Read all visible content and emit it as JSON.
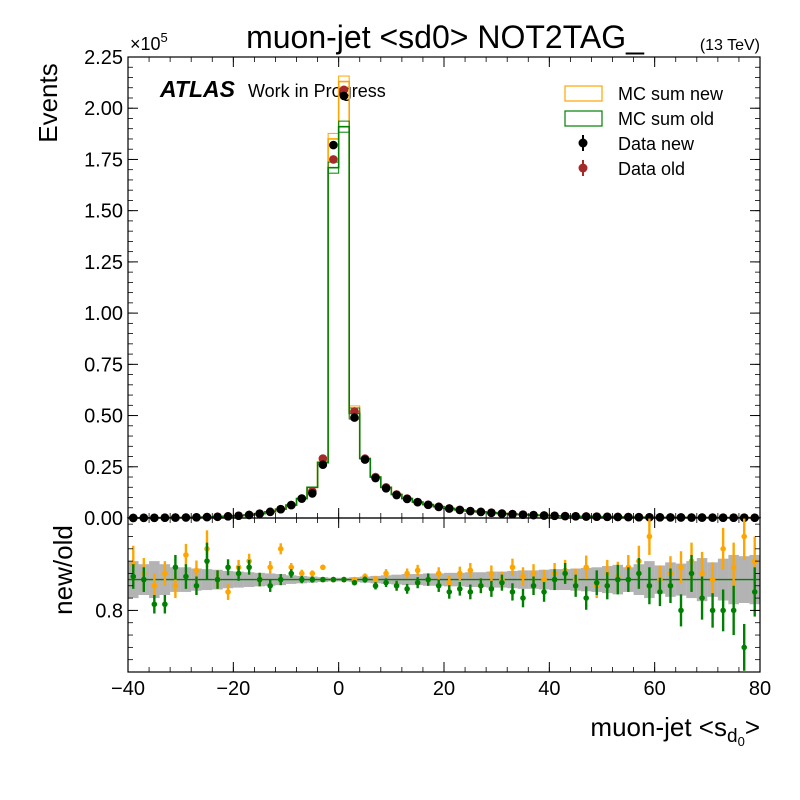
{
  "title": "muon-jet <sd0> NOT2TAG_",
  "energy_label": "(13 TeV)",
  "atlas_label": "ATLAS",
  "atlas_sub": "Work in Progress",
  "scale_exponent_base": "×10",
  "scale_exponent_power": "5",
  "colors": {
    "mc_new": "#ffa500",
    "mc_old": "#008000",
    "data_new": "#000000",
    "data_old": "#a52a2a",
    "ratio_new": "#ffa500",
    "ratio_old": "#008000",
    "band": "#808080"
  },
  "chart_data": [
    {
      "type": "line",
      "panel": "main",
      "xlabel_main": "muon-jet <s",
      "xlabel_sub": "d",
      "xlabel_subsub": "0",
      "xlabel_end": ">",
      "ylabel": "Events",
      "xlim": [
        -40,
        80
      ],
      "ylim": [
        0,
        225000
      ],
      "x_ticks": [
        -40,
        -20,
        0,
        20,
        40,
        60,
        80
      ],
      "y_ticks": [
        0,
        25000,
        50000,
        75000,
        100000,
        125000,
        150000,
        175000,
        200000,
        225000
      ],
      "y_tick_labels": [
        "0.00",
        "0.25",
        "0.50",
        "0.75",
        "1.00",
        "1.25",
        "1.50",
        "1.75",
        "2.00",
        "2.25"
      ],
      "legend": {
        "position": "top-right",
        "entries": [
          "MC sum new",
          "MC sum old",
          "Data new",
          "Data old"
        ]
      },
      "bin_edges": [
        -40,
        -38,
        -36,
        -34,
        -32,
        -30,
        -28,
        -26,
        -24,
        -22,
        -20,
        -18,
        -16,
        -14,
        -12,
        -10,
        -8,
        -6,
        -4,
        -2,
        0,
        2,
        4,
        6,
        8,
        10,
        12,
        14,
        16,
        18,
        20,
        22,
        24,
        26,
        28,
        30,
        32,
        34,
        36,
        38,
        40,
        42,
        44,
        46,
        48,
        50,
        52,
        54,
        56,
        58,
        60,
        62,
        64,
        66,
        68,
        70,
        72,
        74,
        76,
        78,
        80
      ],
      "series": [
        {
          "name": "MC sum new",
          "values": [
            50,
            80,
            100,
            150,
            200,
            250,
            350,
            450,
            600,
            800,
            1100,
            1500,
            2100,
            3000,
            4300,
            6300,
            9500,
            15000,
            27500,
            185000,
            213000,
            52000,
            29000,
            20000,
            15000,
            11500,
            9500,
            7800,
            6500,
            5500,
            4700,
            4000,
            3400,
            3000,
            2600,
            2200,
            1900,
            1650,
            1450,
            1250,
            1100,
            950,
            850,
            750,
            650,
            580,
            520,
            460,
            410,
            370,
            330,
            300,
            270,
            240,
            210,
            190,
            170,
            150,
            140,
            130
          ]
        },
        {
          "name": "MC sum old",
          "values": [
            50,
            80,
            100,
            150,
            200,
            250,
            350,
            450,
            600,
            800,
            1100,
            1500,
            2100,
            3000,
            4300,
            6300,
            9500,
            15000,
            27000,
            171000,
            191000,
            51000,
            29000,
            20000,
            15000,
            11500,
            9500,
            7800,
            6500,
            5500,
            4700,
            4000,
            3400,
            3000,
            2600,
            2200,
            1900,
            1650,
            1450,
            1250,
            1100,
            950,
            850,
            750,
            650,
            580,
            520,
            460,
            410,
            370,
            330,
            300,
            270,
            240,
            210,
            190,
            170,
            150,
            140,
            130
          ]
        },
        {
          "name": "Data new",
          "x": [
            -39,
            -37,
            -35,
            -33,
            -31,
            -29,
            -27,
            -25,
            -23,
            -21,
            -19,
            -17,
            -15,
            -13,
            -11,
            -9,
            -7,
            -5,
            -3,
            -1,
            1,
            3,
            5,
            7,
            9,
            11,
            13,
            15,
            17,
            19,
            21,
            23,
            25,
            27,
            29,
            31,
            33,
            35,
            37,
            39,
            41,
            43,
            45,
            47,
            49,
            51,
            53,
            55,
            57,
            59,
            61,
            63,
            65,
            67,
            69,
            71,
            73,
            75,
            77,
            79
          ],
          "values": [
            50,
            80,
            100,
            150,
            200,
            250,
            350,
            450,
            600,
            800,
            1100,
            1500,
            2100,
            3000,
            4300,
            6300,
            9500,
            12000,
            26000,
            182000,
            206000,
            49000,
            28500,
            19500,
            14500,
            11200,
            9300,
            7700,
            6400,
            5400,
            4600,
            3900,
            3350,
            2950,
            2550,
            2150,
            1850,
            1600,
            1400,
            1200,
            1050,
            920,
            820,
            720,
            630,
            560,
            500,
            450,
            400,
            360,
            320,
            290,
            260,
            230,
            205,
            185,
            165,
            150,
            135,
            125
          ]
        },
        {
          "name": "Data old",
          "x": [
            -39,
            -37,
            -35,
            -33,
            -31,
            -29,
            -27,
            -25,
            -23,
            -21,
            -19,
            -17,
            -15,
            -13,
            -11,
            -9,
            -7,
            -5,
            -3,
            -1,
            1,
            3,
            5,
            7,
            9,
            11,
            13,
            15,
            17,
            19,
            21,
            23,
            25,
            27,
            29,
            31,
            33,
            35,
            37,
            39,
            41,
            43,
            45,
            47,
            49,
            51,
            53,
            55,
            57,
            59,
            61,
            63,
            65,
            67,
            69,
            71,
            73,
            75,
            77,
            79
          ],
          "values": [
            50,
            80,
            100,
            150,
            200,
            250,
            350,
            450,
            600,
            800,
            1100,
            1500,
            2100,
            3000,
            4300,
            6300,
            9500,
            13000,
            29000,
            175000,
            209000,
            52000,
            29000,
            20000,
            15000,
            11500,
            9500,
            7800,
            6500,
            5500,
            4700,
            4000,
            3400,
            3000,
            2600,
            2200,
            1900,
            1650,
            1450,
            1250,
            1100,
            950,
            850,
            750,
            650,
            580,
            520,
            460,
            410,
            370,
            330,
            300,
            270,
            240,
            210,
            190,
            170,
            150,
            140,
            130
          ]
        }
      ]
    },
    {
      "type": "scatter",
      "panel": "ratio",
      "ylabel": "new/old",
      "xlim": [
        -40,
        80
      ],
      "ylim": [
        0.7,
        0.95
      ],
      "y_ticks": [
        0.8
      ],
      "y_tick_labels": [
        "0.8"
      ],
      "reference_line": 0.85,
      "band_halfwidth": [
        0.03,
        0.025,
        0.03,
        0.025,
        0.02,
        0.02,
        0.018,
        0.017,
        0.016,
        0.014,
        0.013,
        0.012,
        0.011,
        0.01,
        0.009,
        0.007,
        0.006,
        0.005,
        0.004,
        0.003,
        0.003,
        0.004,
        0.005,
        0.006,
        0.007,
        0.008,
        0.009,
        0.009,
        0.01,
        0.01,
        0.011,
        0.011,
        0.012,
        0.012,
        0.013,
        0.013,
        0.014,
        0.015,
        0.015,
        0.016,
        0.017,
        0.017,
        0.018,
        0.019,
        0.02,
        0.022,
        0.024,
        0.02,
        0.025,
        0.03,
        0.023,
        0.028,
        0.026,
        0.03,
        0.035,
        0.028,
        0.034,
        0.04,
        0.038,
        0.04
      ],
      "series": [
        {
          "name": "ratio new",
          "x": [
            -39,
            -37,
            -35,
            -33,
            -31,
            -29,
            -27,
            -25,
            -23,
            -21,
            -19,
            -17,
            -15,
            -13,
            -11,
            -9,
            -7,
            -5,
            -3,
            -1,
            1,
            3,
            5,
            7,
            9,
            11,
            13,
            15,
            17,
            19,
            21,
            23,
            25,
            27,
            29,
            31,
            33,
            35,
            37,
            39,
            41,
            43,
            45,
            47,
            49,
            51,
            53,
            55,
            57,
            59,
            61,
            63,
            65,
            67,
            69,
            71,
            73,
            75,
            77,
            79
          ],
          "values": [
            0.875,
            0.86,
            0.84,
            0.86,
            0.84,
            0.89,
            0.865,
            0.9,
            0.85,
            0.83,
            0.87,
            0.88,
            0.85,
            0.87,
            0.9,
            0.87,
            0.86,
            0.86,
            0.87,
            0.85,
            0.85,
            0.85,
            0.855,
            0.85,
            0.86,
            0.84,
            0.86,
            0.865,
            0.85,
            0.86,
            0.845,
            0.86,
            0.865,
            0.84,
            0.86,
            0.85,
            0.87,
            0.855,
            0.86,
            0.85,
            0.86,
            0.865,
            0.85,
            0.87,
            0.84,
            0.86,
            0.855,
            0.87,
            0.88,
            0.92,
            0.85,
            0.86,
            0.87,
            0.88,
            0.86,
            0.85,
            0.9,
            0.87,
            0.92,
            0.88
          ],
          "errors": [
            0.03,
            0.025,
            0.02,
            0.02,
            0.02,
            0.018,
            0.016,
            0.03,
            0.015,
            0.013,
            0.012,
            0.012,
            0.011,
            0.01,
            0.009,
            0.007,
            0.006,
            0.005,
            0.004,
            0.003,
            0.003,
            0.004,
            0.005,
            0.006,
            0.007,
            0.008,
            0.008,
            0.009,
            0.01,
            0.01,
            0.011,
            0.011,
            0.012,
            0.012,
            0.013,
            0.013,
            0.014,
            0.015,
            0.015,
            0.016,
            0.017,
            0.017,
            0.018,
            0.019,
            0.02,
            0.022,
            0.024,
            0.02,
            0.025,
            0.03,
            0.023,
            0.028,
            0.026,
            0.03,
            0.035,
            0.028,
            0.034,
            0.04,
            0.038,
            0.04
          ]
        },
        {
          "name": "ratio old",
          "x": [
            -39,
            -37,
            -35,
            -33,
            -31,
            -29,
            -27,
            -25,
            -23,
            -21,
            -19,
            -17,
            -15,
            -13,
            -11,
            -9,
            -7,
            -5,
            -3,
            -1,
            1,
            3,
            5,
            7,
            9,
            11,
            13,
            15,
            17,
            19,
            21,
            23,
            25,
            27,
            29,
            31,
            33,
            35,
            37,
            39,
            41,
            43,
            45,
            47,
            49,
            51,
            53,
            55,
            57,
            59,
            61,
            63,
            65,
            67,
            69,
            71,
            73,
            75,
            77,
            79
          ],
          "values": [
            0.855,
            0.85,
            0.81,
            0.81,
            0.87,
            0.855,
            0.84,
            0.88,
            0.85,
            0.87,
            0.86,
            0.87,
            0.85,
            0.84,
            0.85,
            0.86,
            0.85,
            0.85,
            0.85,
            0.85,
            0.85,
            0.845,
            0.85,
            0.84,
            0.845,
            0.84,
            0.835,
            0.845,
            0.85,
            0.84,
            0.83,
            0.835,
            0.83,
            0.84,
            0.835,
            0.845,
            0.83,
            0.82,
            0.84,
            0.83,
            0.85,
            0.86,
            0.84,
            0.82,
            0.845,
            0.84,
            0.85,
            0.85,
            0.86,
            0.84,
            0.83,
            0.84,
            0.8,
            0.86,
            0.82,
            0.8,
            0.8,
            0.8,
            0.74,
            0.83
          ],
          "errors": [
            0.02,
            0.02,
            0.015,
            0.015,
            0.02,
            0.02,
            0.015,
            0.03,
            0.015,
            0.013,
            0.012,
            0.012,
            0.011,
            0.01,
            0.009,
            0.007,
            0.006,
            0.005,
            0.004,
            0.003,
            0.003,
            0.004,
            0.005,
            0.006,
            0.007,
            0.008,
            0.008,
            0.009,
            0.01,
            0.01,
            0.011,
            0.011,
            0.012,
            0.012,
            0.013,
            0.013,
            0.014,
            0.015,
            0.015,
            0.016,
            0.017,
            0.017,
            0.018,
            0.019,
            0.02,
            0.022,
            0.024,
            0.02,
            0.025,
            0.03,
            0.023,
            0.028,
            0.026,
            0.03,
            0.035,
            0.028,
            0.034,
            0.04,
            0.038,
            0.04
          ]
        }
      ]
    }
  ]
}
